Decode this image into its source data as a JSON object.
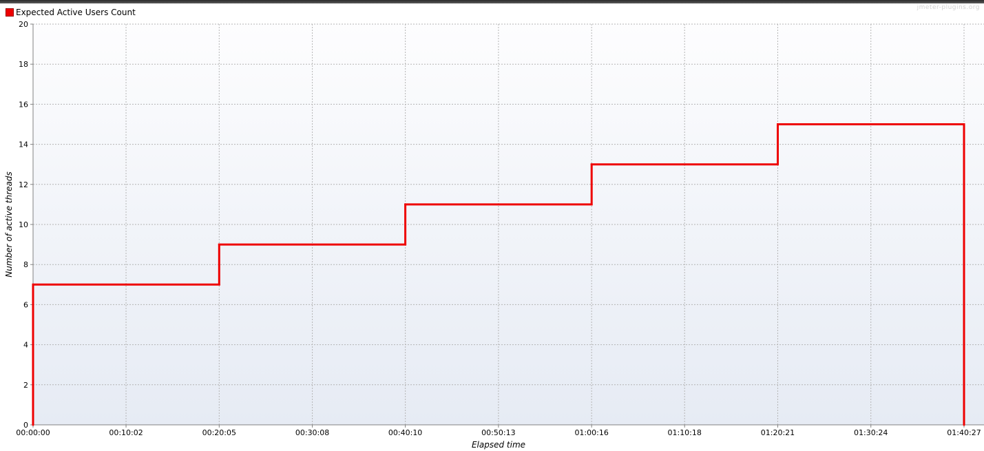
{
  "legend": {
    "label": "Expected Active Users Count",
    "color": "#ee0000"
  },
  "watermark": "jmeter-plugins.org",
  "chart_data": {
    "type": "line",
    "step": true,
    "title": "",
    "xlabel": "Elapsed time",
    "ylabel": "Number of active threads",
    "xlim": [
      "00:00:00",
      "01:40:27"
    ],
    "ylim": [
      0,
      20
    ],
    "grid": true,
    "legend_position": "top-left",
    "x_ticks": [
      "00:00:00",
      "00:10:02",
      "00:20:05",
      "00:30:08",
      "00:40:10",
      "00:50:13",
      "01:00:16",
      "01:10:18",
      "01:20:21",
      "01:30:24",
      "01:40:27"
    ],
    "y_ticks": [
      0,
      2,
      4,
      6,
      8,
      10,
      12,
      14,
      16,
      18,
      20
    ],
    "series": [
      {
        "name": "Expected Active Users Count",
        "color": "#ee0000",
        "x": [
          "00:00:00",
          "00:00:00",
          "00:20:05",
          "00:20:05",
          "00:40:10",
          "00:40:10",
          "01:00:16",
          "01:00:16",
          "01:20:21",
          "01:20:21",
          "01:40:27",
          "01:40:27"
        ],
        "y": [
          0,
          7,
          7,
          9,
          9,
          11,
          11,
          13,
          13,
          15,
          15,
          0
        ]
      }
    ]
  }
}
